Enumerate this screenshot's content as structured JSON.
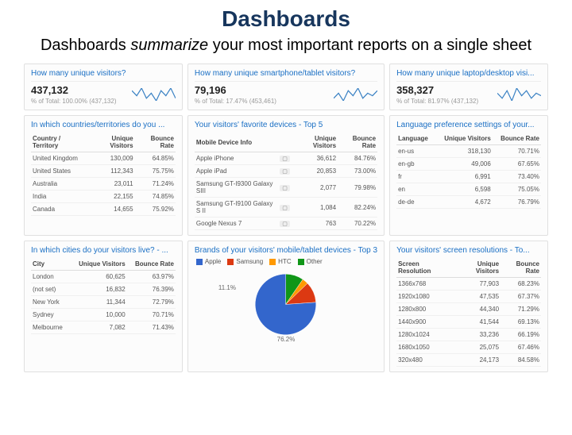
{
  "slide": {
    "title": "Dashboards",
    "subtitle_pre": "Dashboards ",
    "subtitle_ital": "summarize",
    "subtitle_post": " your most important reports on a single sheet"
  },
  "sparkline_color": "#3b82c4",
  "panels": {
    "unique_visitors": {
      "title": "How many unique visitors?",
      "value": "437,132",
      "sub": "% of Total: 100.00% (437,132)",
      "spark": [
        8,
        6,
        9,
        5,
        7,
        4,
        8,
        6,
        9,
        5
      ]
    },
    "mobile_visitors": {
      "title": "How many unique smartphone/tablet visitors?",
      "value": "79,196",
      "sub": "% of Total: 17.47% (453,461)",
      "spark": [
        5,
        7,
        4,
        8,
        6,
        9,
        5,
        7,
        6,
        8
      ]
    },
    "desktop_visitors": {
      "title": "How many unique laptop/desktop visi...",
      "value": "358,327",
      "sub": "% of Total: 81.97% (437,132)",
      "spark": [
        7,
        5,
        8,
        4,
        9,
        6,
        8,
        5,
        7,
        6
      ]
    },
    "countries": {
      "title": "In which countries/territories do you ...",
      "cols": [
        "Country / Territory",
        "Unique Visitors",
        "Bounce Rate"
      ],
      "rows": [
        [
          "United Kingdom",
          "130,009",
          "64.85%"
        ],
        [
          "United States",
          "112,343",
          "75.75%"
        ],
        [
          "Australia",
          "23,011",
          "71.24%"
        ],
        [
          "India",
          "22,155",
          "74.85%"
        ],
        [
          "Canada",
          "14,655",
          "75.92%"
        ]
      ]
    },
    "devices": {
      "title": "Your visitors' favorite devices - Top 5",
      "cols": [
        "Mobile Device Info",
        "",
        "Unique Visitors",
        "Bounce Rate"
      ],
      "rows": [
        [
          "Apple iPhone",
          "",
          "36,612",
          "84.76%"
        ],
        [
          "Apple iPad",
          "",
          "20,853",
          "73.00%"
        ],
        [
          "Samsung GT-I9300 Galaxy SIII",
          "",
          "2,077",
          "79.98%"
        ],
        [
          "Samsung GT-I9100 Galaxy S II",
          "",
          "1,084",
          "82.24%"
        ],
        [
          "Google Nexus 7",
          "",
          "763",
          "70.22%"
        ]
      ]
    },
    "language": {
      "title": "Language preference settings of your...",
      "cols": [
        "Language",
        "Unique Visitors",
        "Bounce Rate"
      ],
      "rows": [
        [
          "en-us",
          "318,130",
          "70.71%"
        ],
        [
          "en-gb",
          "49,006",
          "67.65%"
        ],
        [
          "fr",
          "6,991",
          "73.40%"
        ],
        [
          "en",
          "6,598",
          "75.05%"
        ],
        [
          "de-de",
          "4,672",
          "76.79%"
        ]
      ]
    },
    "cities": {
      "title": "In which cities do your visitors live? - ...",
      "cols": [
        "City",
        "Unique Visitors",
        "Bounce Rate"
      ],
      "rows": [
        [
          "London",
          "60,625",
          "63.97%"
        ],
        [
          "(not set)",
          "16,832",
          "76.39%"
        ],
        [
          "New York",
          "11,344",
          "72.79%"
        ],
        [
          "Sydney",
          "10,000",
          "70.71%"
        ],
        [
          "Melbourne",
          "7,082",
          "71.43%"
        ]
      ]
    },
    "brands": {
      "title": "Brands of your visitors' mobile/tablet devices - Top 3",
      "type": "pie",
      "legend": [
        {
          "label": "Apple",
          "color": "#3366cc"
        },
        {
          "label": "Samsung",
          "color": "#dc3912"
        },
        {
          "label": "HTC",
          "color": "#ff9900"
        },
        {
          "label": "Other",
          "color": "#109618"
        }
      ],
      "slices": [
        {
          "label": "Other",
          "value": 9.6,
          "color": "#109618"
        },
        {
          "label": "HTC",
          "value": 3.2,
          "color": "#ff9900"
        },
        {
          "label": "Samsung",
          "value": 11.1,
          "color": "#dc3912"
        },
        {
          "label": "Apple",
          "value": 76.2,
          "color": "#3366cc"
        }
      ],
      "labels_shown": [
        "11.1%",
        "76.2%"
      ]
    },
    "resolutions": {
      "title": "Your visitors' screen resolutions - To...",
      "cols": [
        "Screen Resolution",
        "Unique Visitors",
        "Bounce Rate"
      ],
      "rows": [
        [
          "1366x768",
          "77,903",
          "68.23%"
        ],
        [
          "1920x1080",
          "47,535",
          "67.37%"
        ],
        [
          "1280x800",
          "44,340",
          "71.29%"
        ],
        [
          "1440x900",
          "41,544",
          "69.13%"
        ],
        [
          "1280x1024",
          "33,236",
          "66.19%"
        ],
        [
          "1680x1050",
          "25,075",
          "67.46%"
        ],
        [
          "320x480",
          "24,173",
          "84.58%"
        ]
      ]
    }
  }
}
